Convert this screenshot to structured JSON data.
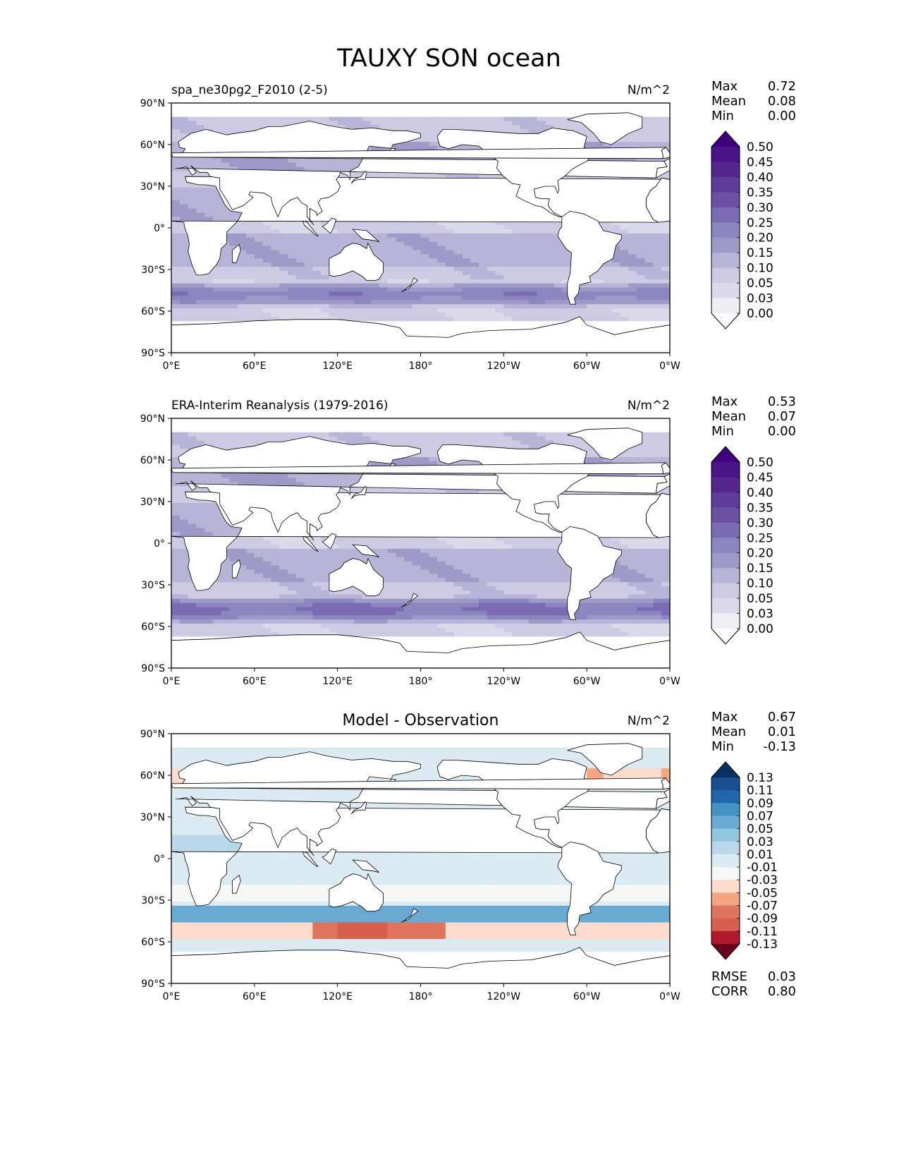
{
  "figure": {
    "title": "TAUXY SON ocean"
  },
  "panels": [
    {
      "id": "model",
      "left_title": "spa_ne30pg2_F2010 (2-5)",
      "center_title": "",
      "units": "N/m^2",
      "stats": [
        {
          "label": "Max",
          "value": "0.72"
        },
        {
          "label": "Mean",
          "value": "0.08"
        },
        {
          "label": "Min",
          "value": "0.00"
        }
      ],
      "footer_stats": [],
      "colorbar": {
        "colormap": "purples",
        "levels": [
          "0.50",
          "0.45",
          "0.40",
          "0.35",
          "0.30",
          "0.25",
          "0.20",
          "0.15",
          "0.10",
          "0.05",
          "0.03",
          "0.00"
        ],
        "colors": [
          "#3f007d",
          "#4a1486",
          "#54278f",
          "#5e3c99",
          "#6a51a3",
          "#7b6bb3",
          "#8c86c0",
          "#9e9ac8",
          "#b6b4d7",
          "#cccbe3",
          "#dadaeb",
          "#efedf5",
          "#fcfbfd"
        ]
      }
    },
    {
      "id": "obs",
      "left_title": "ERA-Interim Reanalysis (1979-2016)",
      "center_title": "",
      "units": "N/m^2",
      "stats": [
        {
          "label": "Max",
          "value": "0.53"
        },
        {
          "label": "Mean",
          "value": "0.07"
        },
        {
          "label": "Min",
          "value": "0.00"
        }
      ],
      "footer_stats": [],
      "colorbar": {
        "colormap": "purples",
        "levels": [
          "0.50",
          "0.45",
          "0.40",
          "0.35",
          "0.30",
          "0.25",
          "0.20",
          "0.15",
          "0.10",
          "0.05",
          "0.03",
          "0.00"
        ],
        "colors": [
          "#3f007d",
          "#4a1486",
          "#54278f",
          "#5e3c99",
          "#6a51a3",
          "#7b6bb3",
          "#8c86c0",
          "#9e9ac8",
          "#b6b4d7",
          "#cccbe3",
          "#dadaeb",
          "#efedf5",
          "#fcfbfd"
        ]
      }
    },
    {
      "id": "diff",
      "left_title": "",
      "center_title": "Model - Observation",
      "units": "N/m^2",
      "stats": [
        {
          "label": "Max",
          "value": "0.67"
        },
        {
          "label": "Mean",
          "value": "0.01"
        },
        {
          "label": "Min",
          "value": "-0.13"
        }
      ],
      "footer_stats": [
        {
          "label": "RMSE",
          "value": "0.03"
        },
        {
          "label": "CORR",
          "value": "0.80"
        }
      ],
      "colorbar": {
        "colormap": "diverging-blue-red",
        "levels": [
          "0.13",
          "0.11",
          "0.09",
          "0.07",
          "0.05",
          "0.03",
          "0.01",
          "-0.01",
          "-0.03",
          "-0.05",
          "-0.07",
          "-0.09",
          "-0.11",
          "-0.13"
        ],
        "colors": [
          "#053061",
          "#1a4f8f",
          "#2166ac",
          "#4393c3",
          "#6aa9d2",
          "#92c5de",
          "#bad8ea",
          "#dceaf3",
          "#f7f7f7",
          "#fbdccd",
          "#f4a582",
          "#e0755f",
          "#d6604d",
          "#b2182b",
          "#67001f"
        ]
      }
    }
  ],
  "axes": {
    "lat_ticks": [
      "90°N",
      "60°N",
      "30°N",
      "0°",
      "30°S",
      "60°S",
      "90°S"
    ],
    "lon_ticks": [
      "0°E",
      "60°E",
      "120°E",
      "180°",
      "120°W",
      "60°W",
      "0°W"
    ]
  }
}
